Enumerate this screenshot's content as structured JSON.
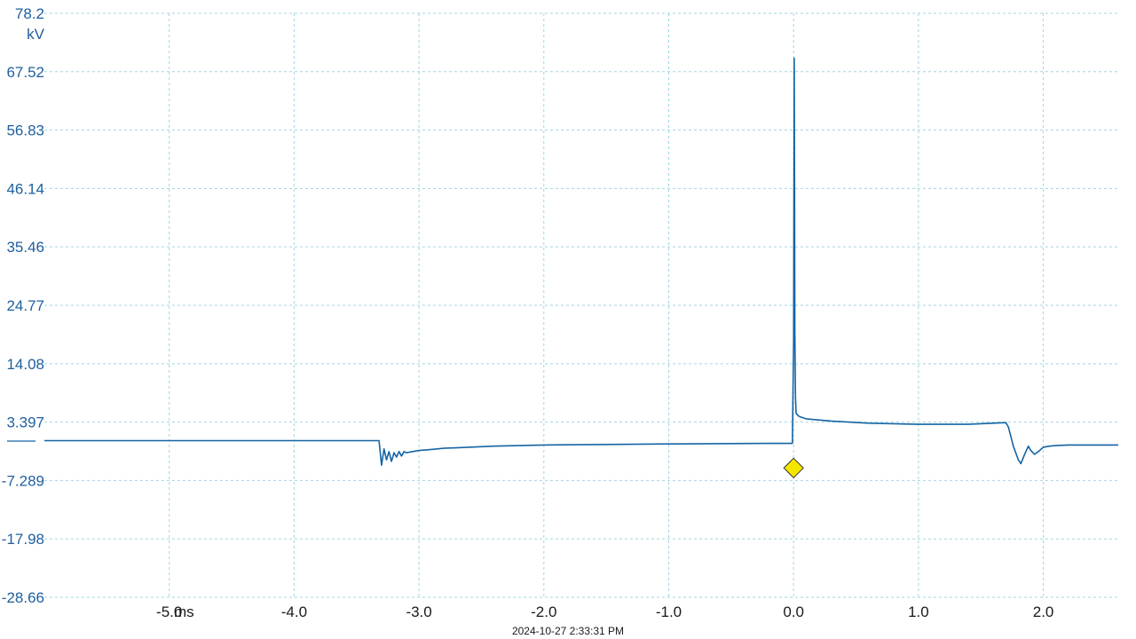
{
  "chart_data": {
    "type": "line",
    "y_unit": "kV",
    "x_unit": "ms",
    "y_ticks": [
      "78.2",
      "67.52",
      "56.83",
      "46.14",
      "35.46",
      "24.77",
      "14.08",
      "3.397",
      "-7.289",
      "-17.98",
      "-28.66"
    ],
    "y_tick_values": [
      78.2,
      67.52,
      56.83,
      46.14,
      35.46,
      24.77,
      14.08,
      3.397,
      -7.289,
      -17.98,
      -28.66
    ],
    "x_ticks": [
      "-5.0",
      "-4.0",
      "-3.0",
      "-2.0",
      "-1.0",
      "0.0",
      "1.0",
      "2.0"
    ],
    "x_tick_values": [
      -5.0,
      -4.0,
      -3.0,
      -2.0,
      -1.0,
      0.0,
      1.0,
      2.0
    ],
    "xlim": [
      -6.0,
      2.6
    ],
    "ylim": [
      -28.66,
      78.2
    ],
    "grid": true,
    "timestamp": "2024-10-27 2:33:31 PM",
    "trigger_marker": {
      "x": 0.0,
      "y": -5.0,
      "color": "#f5e600"
    },
    "series": [
      {
        "color": "#1464a5",
        "x": [
          -6.0,
          -3.32,
          -3.3,
          -3.28,
          -3.26,
          -3.24,
          -3.22,
          -3.2,
          -3.18,
          -3.16,
          -3.14,
          -3.12,
          -3.1,
          -3.05,
          -3.0,
          -2.9,
          -2.8,
          -2.6,
          -2.4,
          -2.0,
          -1.5,
          -1.0,
          -0.2,
          -0.01,
          0.0,
          0.005,
          0.008,
          0.01,
          0.015,
          0.02,
          0.04,
          0.06,
          0.1,
          0.3,
          0.6,
          1.0,
          1.4,
          1.7,
          1.72,
          1.76,
          1.8,
          1.82,
          1.85,
          1.88,
          1.9,
          1.93,
          1.96,
          2.0,
          2.05,
          2.1,
          2.2,
          2.3,
          2.6
        ],
        "y": [
          0.0,
          0.0,
          -4.5,
          -1.5,
          -3.5,
          -2.0,
          -3.8,
          -2.2,
          -3.0,
          -2.0,
          -2.8,
          -2.0,
          -2.2,
          -2.0,
          -1.8,
          -1.6,
          -1.4,
          -1.2,
          -1.0,
          -0.8,
          -0.7,
          -0.6,
          -0.5,
          -0.5,
          18.0,
          70.0,
          45.0,
          20.0,
          8.0,
          5.0,
          4.5,
          4.3,
          4.0,
          3.6,
          3.2,
          3.0,
          3.0,
          3.3,
          2.5,
          -1.0,
          -3.5,
          -4.2,
          -2.5,
          -1.0,
          -1.8,
          -2.5,
          -2.0,
          -1.2,
          -1.0,
          -0.9,
          -0.8,
          -0.8,
          -0.8
        ]
      }
    ]
  }
}
